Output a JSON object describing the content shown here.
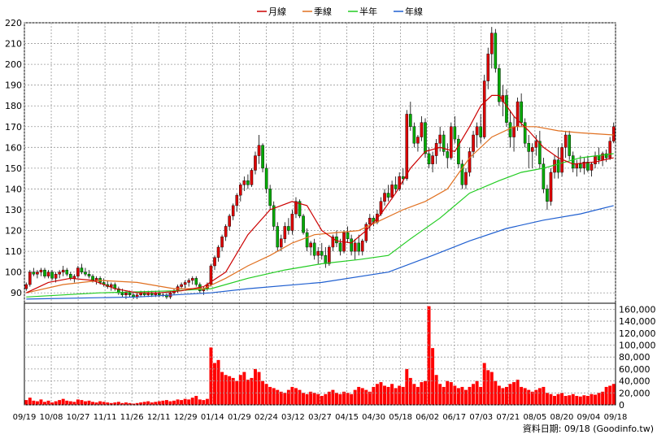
{
  "chart_data": {
    "type": "line",
    "legend": [
      {
        "name": "月線",
        "color": "#cc0000"
      },
      {
        "name": "季線",
        "color": "#e07020"
      },
      {
        "name": "半年",
        "color": "#22cc22"
      },
      {
        "name": "年線",
        "color": "#1f5fd0"
      }
    ],
    "price_axis": {
      "ylim": [
        85,
        220
      ],
      "ticks": [
        90,
        100,
        110,
        120,
        130,
        140,
        150,
        160,
        170,
        180,
        190,
        200,
        210,
        220
      ]
    },
    "volume_axis": {
      "ylim": [
        0,
        170000
      ],
      "ticks": [
        "0",
        "20,000",
        "40,000",
        "60,000",
        "80,000",
        "100,000",
        "120,000",
        "140,000",
        "160,000"
      ],
      "tick_values": [
        0,
        20000,
        40000,
        60000,
        80000,
        100000,
        120000,
        140000,
        160000
      ]
    },
    "x_labels": [
      "09/19",
      "10/08",
      "10/27",
      "11/11",
      "11/26",
      "12/11",
      "12/29",
      "01/14",
      "01/29",
      "02/24",
      "03/12",
      "03/27",
      "04/15",
      "04/30",
      "05/18",
      "06/02",
      "06/17",
      "07/03",
      "07/21",
      "08/05",
      "08/20",
      "09/04",
      "09/18"
    ],
    "candles": [
      [
        92,
        95,
        91,
        94
      ],
      [
        94,
        101,
        93,
        100
      ],
      [
        100,
        102,
        98,
        99
      ],
      [
        99,
        101,
        97,
        100
      ],
      [
        100,
        102,
        98,
        101
      ],
      [
        101,
        102,
        97,
        98
      ],
      [
        98,
        101,
        97,
        100
      ],
      [
        100,
        101,
        96,
        97
      ],
      [
        97,
        100,
        95,
        99
      ],
      [
        99,
        101,
        97,
        100
      ],
      [
        100,
        103,
        98,
        101
      ],
      [
        101,
        102,
        98,
        99
      ],
      [
        99,
        100,
        96,
        97
      ],
      [
        97,
        99,
        95,
        98
      ],
      [
        98,
        103,
        97,
        102
      ],
      [
        102,
        104,
        99,
        100
      ],
      [
        100,
        102,
        98,
        99
      ],
      [
        99,
        101,
        97,
        98
      ],
      [
        98,
        99,
        95,
        96
      ],
      [
        96,
        98,
        94,
        97
      ],
      [
        97,
        98,
        94,
        95
      ],
      [
        95,
        97,
        93,
        94
      ],
      [
        94,
        96,
        92,
        93
      ],
      [
        93,
        95,
        91,
        94
      ],
      [
        94,
        95,
        91,
        92
      ],
      [
        92,
        93,
        89,
        90
      ],
      [
        90,
        92,
        88,
        89
      ],
      [
        89,
        91,
        87,
        90
      ],
      [
        90,
        91,
        88,
        89
      ],
      [
        89,
        90,
        87,
        88
      ],
      [
        88,
        90,
        87,
        89
      ],
      [
        89,
        91,
        88,
        90
      ],
      [
        90,
        91,
        88,
        89
      ],
      [
        89,
        91,
        88,
        90
      ],
      [
        90,
        91,
        88,
        89
      ],
      [
        89,
        91,
        88,
        90
      ],
      [
        90,
        91,
        88,
        89
      ],
      [
        89,
        90,
        88,
        89
      ],
      [
        89,
        90,
        87,
        88
      ],
      [
        88,
        91,
        87,
        90
      ],
      [
        90,
        92,
        89,
        91
      ],
      [
        91,
        94,
        90,
        93
      ],
      [
        93,
        95,
        92,
        94
      ],
      [
        94,
        96,
        92,
        95
      ],
      [
        95,
        97,
        93,
        96
      ],
      [
        96,
        98,
        94,
        97
      ],
      [
        97,
        98,
        93,
        94
      ],
      [
        94,
        95,
        90,
        91
      ],
      [
        91,
        93,
        89,
        92
      ],
      [
        92,
        95,
        91,
        94
      ],
      [
        94,
        104,
        93,
        103
      ],
      [
        103,
        108,
        101,
        107
      ],
      [
        107,
        113,
        105,
        112
      ],
      [
        112,
        118,
        110,
        117
      ],
      [
        117,
        123,
        115,
        122
      ],
      [
        122,
        128,
        120,
        127
      ],
      [
        127,
        133,
        125,
        132
      ],
      [
        132,
        138,
        129,
        137
      ],
      [
        137,
        143,
        134,
        142
      ],
      [
        142,
        146,
        139,
        144
      ],
      [
        144,
        147,
        140,
        142
      ],
      [
        142,
        150,
        141,
        149
      ],
      [
        149,
        158,
        147,
        156
      ],
      [
        156,
        166,
        152,
        161
      ],
      [
        161,
        162,
        148,
        150
      ],
      [
        150,
        152,
        138,
        140
      ],
      [
        140,
        142,
        130,
        132
      ],
      [
        132,
        134,
        120,
        122
      ],
      [
        122,
        124,
        110,
        112
      ],
      [
        112,
        118,
        110,
        116
      ],
      [
        116,
        124,
        114,
        122
      ],
      [
        122,
        126,
        118,
        120
      ],
      [
        120,
        130,
        118,
        128
      ],
      [
        128,
        136,
        126,
        134
      ],
      [
        134,
        135,
        126,
        127
      ],
      [
        127,
        128,
        118,
        119
      ],
      [
        119,
        121,
        110,
        112
      ],
      [
        112,
        115,
        108,
        114
      ],
      [
        114,
        116,
        106,
        108
      ],
      [
        108,
        112,
        104,
        110
      ],
      [
        110,
        114,
        106,
        108
      ],
      [
        108,
        112,
        102,
        104
      ],
      [
        104,
        113,
        103,
        112
      ],
      [
        112,
        118,
        110,
        117
      ],
      [
        117,
        120,
        112,
        114
      ],
      [
        114,
        116,
        108,
        110
      ],
      [
        110,
        120,
        109,
        119
      ],
      [
        119,
        122,
        114,
        116
      ],
      [
        116,
        118,
        108,
        110
      ],
      [
        110,
        116,
        106,
        114
      ],
      [
        114,
        118,
        108,
        110
      ],
      [
        110,
        116,
        108,
        115
      ],
      [
        115,
        124,
        114,
        123
      ],
      [
        123,
        128,
        120,
        126
      ],
      [
        126,
        127,
        122,
        124
      ],
      [
        124,
        130,
        123,
        128
      ],
      [
        128,
        136,
        127,
        134
      ],
      [
        134,
        140,
        132,
        138
      ],
      [
        138,
        142,
        134,
        136
      ],
      [
        136,
        144,
        135,
        142
      ],
      [
        142,
        146,
        138,
        140
      ],
      [
        140,
        148,
        139,
        146
      ],
      [
        146,
        150,
        142,
        145
      ],
      [
        145,
        178,
        144,
        176
      ],
      [
        176,
        182,
        168,
        170
      ],
      [
        170,
        172,
        160,
        162
      ],
      [
        162,
        166,
        158,
        165
      ],
      [
        165,
        175,
        163,
        172
      ],
      [
        172,
        174,
        155,
        157
      ],
      [
        157,
        160,
        150,
        152
      ],
      [
        152,
        158,
        148,
        156
      ],
      [
        156,
        164,
        152,
        162
      ],
      [
        162,
        170,
        158,
        166
      ],
      [
        166,
        168,
        156,
        158
      ],
      [
        158,
        162,
        150,
        155
      ],
      [
        155,
        172,
        154,
        170
      ],
      [
        170,
        175,
        162,
        164
      ],
      [
        164,
        166,
        150,
        152
      ],
      [
        152,
        154,
        140,
        142
      ],
      [
        142,
        150,
        140,
        148
      ],
      [
        148,
        160,
        146,
        158
      ],
      [
        158,
        168,
        155,
        166
      ],
      [
        166,
        172,
        160,
        170
      ],
      [
        170,
        176,
        162,
        165
      ],
      [
        165,
        195,
        164,
        192
      ],
      [
        192,
        208,
        188,
        205
      ],
      [
        205,
        218,
        198,
        215
      ],
      [
        215,
        217,
        196,
        198
      ],
      [
        198,
        200,
        180,
        182
      ],
      [
        182,
        190,
        175,
        185
      ],
      [
        185,
        188,
        170,
        172
      ],
      [
        172,
        178,
        160,
        165
      ],
      [
        165,
        175,
        158,
        170
      ],
      [
        170,
        184,
        168,
        182
      ],
      [
        182,
        186,
        170,
        172
      ],
      [
        172,
        174,
        160,
        162
      ],
      [
        162,
        166,
        150,
        158
      ],
      [
        158,
        162,
        150,
        160
      ],
      [
        160,
        166,
        156,
        163
      ],
      [
        163,
        168,
        150,
        152
      ],
      [
        152,
        155,
        138,
        140
      ],
      [
        140,
        142,
        130,
        134
      ],
      [
        134,
        150,
        132,
        148
      ],
      [
        148,
        156,
        145,
        154
      ],
      [
        154,
        160,
        145,
        148
      ],
      [
        148,
        162,
        146,
        160
      ],
      [
        160,
        168,
        155,
        166
      ],
      [
        166,
        168,
        154,
        156
      ],
      [
        156,
        158,
        148,
        150
      ],
      [
        150,
        154,
        146,
        152
      ],
      [
        152,
        156,
        148,
        150
      ],
      [
        150,
        155,
        147,
        153
      ],
      [
        153,
        156,
        148,
        149
      ],
      [
        149,
        153,
        146,
        152
      ],
      [
        152,
        158,
        150,
        156
      ],
      [
        156,
        160,
        152,
        154
      ],
      [
        154,
        158,
        151,
        157
      ],
      [
        157,
        159,
        153,
        155
      ],
      [
        155,
        165,
        154,
        163
      ],
      [
        163,
        172,
        162,
        170
      ]
    ],
    "volume": [
      8000,
      12000,
      7000,
      6000,
      9000,
      5000,
      7000,
      4000,
      6000,
      8000,
      10000,
      7000,
      6000,
      5000,
      9000,
      8000,
      6000,
      7000,
      5000,
      4000,
      6000,
      5000,
      4000,
      3000,
      4000,
      5000,
      3000,
      4000,
      3000,
      2000,
      3000,
      4000,
      5000,
      6000,
      4000,
      5000,
      6000,
      7000,
      8000,
      6000,
      7000,
      9000,
      8000,
      10000,
      9000,
      12000,
      15000,
      9000,
      8000,
      10000,
      96000,
      70000,
      75000,
      55000,
      50000,
      48000,
      45000,
      40000,
      50000,
      55000,
      42000,
      45000,
      60000,
      55000,
      40000,
      35000,
      30000,
      28000,
      25000,
      22000,
      20000,
      25000,
      30000,
      28000,
      25000,
      20000,
      18000,
      22000,
      20000,
      18000,
      15000,
      18000,
      22000,
      25000,
      20000,
      18000,
      22000,
      20000,
      18000,
      25000,
      30000,
      28000,
      25000,
      22000,
      30000,
      35000,
      38000,
      32000,
      30000,
      35000,
      28000,
      32000,
      30000,
      60000,
      45000,
      35000,
      30000,
      38000,
      40000,
      165000,
      95000,
      50000,
      35000,
      30000,
      40000,
      38000,
      32000,
      28000,
      30000,
      25000,
      30000,
      35000,
      40000,
      30000,
      70000,
      58000,
      55000,
      40000,
      32000,
      28000,
      30000,
      35000,
      38000,
      42000,
      30000,
      28000,
      25000,
      22000,
      25000,
      28000,
      30000,
      20000,
      18000,
      15000,
      18000,
      20000,
      15000,
      16000,
      18000,
      15000,
      14000,
      16000,
      15000,
      18000,
      17000,
      20000,
      22000,
      30000,
      32000,
      35000
    ],
    "ma_month": [
      [
        0,
        90
      ],
      [
        6,
        95
      ],
      [
        12,
        97
      ],
      [
        18,
        96
      ],
      [
        24,
        92
      ],
      [
        30,
        90
      ],
      [
        36,
        90
      ],
      [
        42,
        91
      ],
      [
        48,
        93
      ],
      [
        54,
        100
      ],
      [
        60,
        118
      ],
      [
        66,
        130
      ],
      [
        72,
        134
      ],
      [
        76,
        132
      ],
      [
        80,
        120
      ],
      [
        84,
        115
      ],
      [
        88,
        114
      ],
      [
        92,
        120
      ],
      [
        96,
        128
      ],
      [
        100,
        138
      ],
      [
        104,
        150
      ],
      [
        108,
        158
      ],
      [
        112,
        160
      ],
      [
        116,
        158
      ],
      [
        120,
        170
      ],
      [
        123,
        180
      ],
      [
        126,
        185
      ],
      [
        128,
        185
      ],
      [
        132,
        175
      ],
      [
        136,
        168
      ],
      [
        140,
        160
      ],
      [
        144,
        155
      ],
      [
        148,
        152
      ],
      [
        154,
        153
      ],
      [
        159,
        155
      ]
    ],
    "ma_quarter": [
      [
        0,
        90
      ],
      [
        10,
        94
      ],
      [
        20,
        96
      ],
      [
        30,
        95
      ],
      [
        40,
        92
      ],
      [
        48,
        92
      ],
      [
        54,
        97
      ],
      [
        60,
        103
      ],
      [
        66,
        108
      ],
      [
        72,
        114
      ],
      [
        78,
        118
      ],
      [
        84,
        119
      ],
      [
        90,
        120
      ],
      [
        96,
        125
      ],
      [
        102,
        130
      ],
      [
        108,
        134
      ],
      [
        114,
        140
      ],
      [
        120,
        155
      ],
      [
        126,
        165
      ],
      [
        132,
        170
      ],
      [
        138,
        170
      ],
      [
        144,
        168
      ],
      [
        150,
        167
      ],
      [
        159,
        166
      ]
    ],
    "ma_half": [
      [
        0,
        88
      ],
      [
        20,
        90
      ],
      [
        40,
        91
      ],
      [
        50,
        92
      ],
      [
        60,
        97
      ],
      [
        70,
        101
      ],
      [
        80,
        104
      ],
      [
        90,
        106
      ],
      [
        98,
        108
      ],
      [
        104,
        116
      ],
      [
        112,
        126
      ],
      [
        120,
        138
      ],
      [
        128,
        144
      ],
      [
        134,
        148
      ],
      [
        140,
        150
      ],
      [
        150,
        155
      ],
      [
        159,
        157
      ]
    ],
    "ma_year": [
      [
        0,
        87
      ],
      [
        30,
        88
      ],
      [
        50,
        90
      ],
      [
        60,
        92
      ],
      [
        80,
        95
      ],
      [
        98,
        100
      ],
      [
        110,
        108
      ],
      [
        120,
        115
      ],
      [
        130,
        121
      ],
      [
        140,
        125
      ],
      [
        150,
        128
      ],
      [
        159,
        132
      ]
    ]
  },
  "credit": "資料日期: 09/18 (Goodinfo.tw)"
}
